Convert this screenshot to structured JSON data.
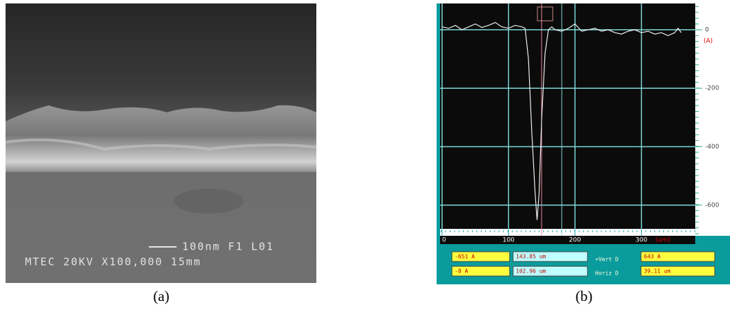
{
  "panel_a": {
    "scale_label": "100nm F1 L01",
    "info": "MTEC 20KV X100,000 15mm",
    "caption": "(a)"
  },
  "chart_data": {
    "type": "line",
    "x_label": "(um)",
    "y_label": "(A)",
    "x": [
      0,
      10,
      20,
      30,
      40,
      50,
      60,
      70,
      80,
      90,
      100,
      110,
      120,
      125,
      130,
      135,
      140,
      143,
      146,
      150,
      155,
      160,
      165,
      170,
      180,
      190,
      200,
      210,
      220,
      230,
      240,
      250,
      260,
      270,
      280,
      290,
      300,
      310,
      320,
      330,
      340,
      350,
      355,
      360
    ],
    "values": [
      10,
      5,
      15,
      0,
      10,
      20,
      8,
      15,
      25,
      10,
      5,
      15,
      10,
      5,
      -100,
      -350,
      -560,
      -651,
      -560,
      -300,
      -80,
      0,
      10,
      0,
      -5,
      5,
      20,
      -5,
      0,
      5,
      -5,
      0,
      -10,
      -15,
      -5,
      0,
      -10,
      -5,
      -15,
      -10,
      -20,
      -10,
      5,
      -10
    ],
    "color": "#eeeeee",
    "grid_color": "#7fd8d8",
    "xlim": [
      -3,
      381
    ],
    "ylim": [
      -705,
      90
    ],
    "xticks": [
      0,
      100,
      200,
      300
    ],
    "yticks": [
      0,
      -200,
      -400,
      -600
    ],
    "grid": true
  },
  "readouts": {
    "row1": [
      "-651 A",
      "143.85 um",
      "+Vert D",
      "643 A"
    ],
    "row2": [
      "-8 A",
      "102.96 um",
      "Horiz D",
      "39.11 um"
    ]
  },
  "panel_b": {
    "caption": "(b)"
  }
}
